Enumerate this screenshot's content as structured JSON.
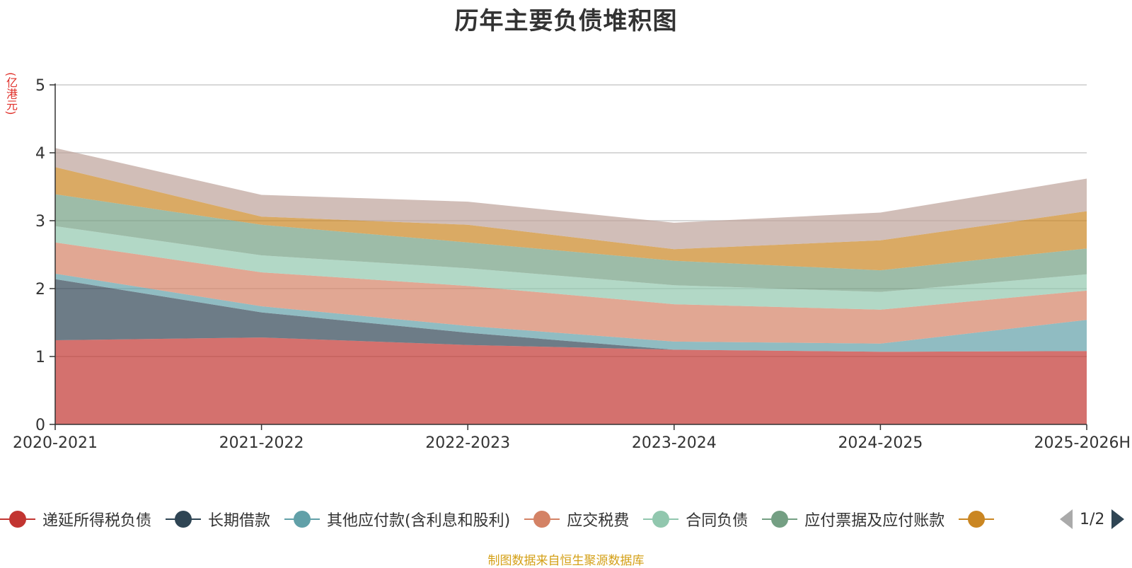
{
  "chart_data": {
    "type": "area",
    "title": "历年主要负债堆积图",
    "ylabel": "(亿港元)",
    "xlabel": "",
    "stacked": true,
    "ylim": [
      0,
      5
    ],
    "yticks": [
      "0",
      "1",
      "2",
      "3",
      "4",
      "5"
    ],
    "grid": true,
    "categories": [
      "2020-2021",
      "2021-2022",
      "2022-2023",
      "2023-2024",
      "2024-2025",
      "2025-2026H"
    ],
    "series": [
      {
        "name": "递延所得税负债",
        "color": "#c23531",
        "values": [
          1.24,
          1.28,
          1.17,
          1.1,
          1.07,
          1.08
        ]
      },
      {
        "name": "长期借款",
        "color": "#2f4554",
        "values": [
          0.9,
          0.37,
          0.18,
          0.0,
          0.0,
          0.0
        ]
      },
      {
        "name": "其他应付款(含利息和股利)",
        "color": "#61a0a8",
        "values": [
          0.08,
          0.09,
          0.1,
          0.12,
          0.12,
          0.46
        ]
      },
      {
        "name": "应交税费",
        "color": "#d48265",
        "values": [
          0.46,
          0.5,
          0.59,
          0.55,
          0.5,
          0.43
        ]
      },
      {
        "name": "合同负债",
        "color": "#91c7ae",
        "values": [
          0.24,
          0.25,
          0.26,
          0.28,
          0.26,
          0.24
        ]
      },
      {
        "name": "应付票据及应付账款",
        "color": "#749f83",
        "values": [
          0.47,
          0.45,
          0.38,
          0.36,
          0.32,
          0.38
        ]
      },
      {
        "name": "",
        "color": "#ca8622",
        "values": [
          0.4,
          0.12,
          0.26,
          0.17,
          0.44,
          0.55
        ]
      },
      {
        "name": "",
        "color": "#bda29a",
        "values": [
          0.28,
          0.32,
          0.34,
          0.39,
          0.41,
          0.48
        ]
      }
    ]
  },
  "legend": {
    "items": [
      {
        "label": "递延所得税负债",
        "color": "#c23531"
      },
      {
        "label": "长期借款",
        "color": "#2f4554"
      },
      {
        "label": "其他应付款(含利息和股利)",
        "color": "#61a0a8"
      },
      {
        "label": "应交税费",
        "color": "#d48265"
      },
      {
        "label": "合同负债",
        "color": "#91c7ae"
      },
      {
        "label": "应付票据及应付账款",
        "color": "#749f83"
      },
      {
        "label": "",
        "color": "#ca8622"
      }
    ],
    "page_text": "1/2"
  },
  "source_note": "制图数据来自恒生聚源数据库"
}
